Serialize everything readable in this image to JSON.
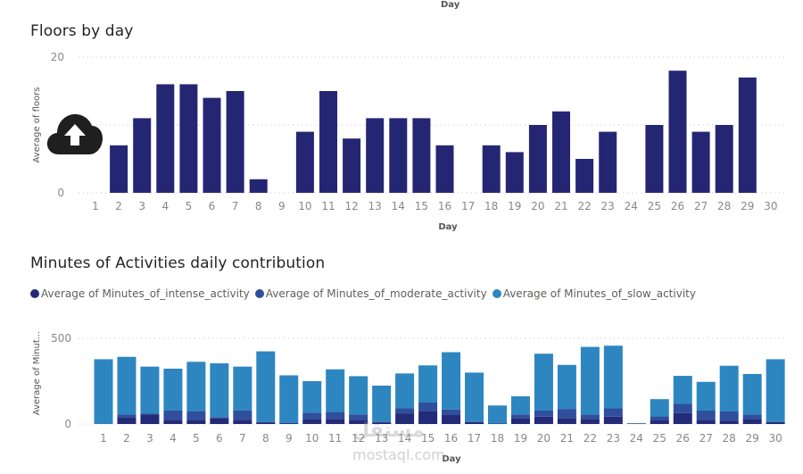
{
  "header": {
    "top_axis_label": "Day"
  },
  "watermark": {
    "arabic": "مستقل",
    "latin": "mostaql.com"
  },
  "colors": {
    "floors": "#252673",
    "intense": "#232A78",
    "moderate": "#2F4E9C",
    "slow": "#2E86C1",
    "grid": "#C8C6C4",
    "tick": "#8A8886"
  },
  "icons": {
    "upload": "cloud-upload-icon"
  },
  "chart_data": [
    {
      "type": "bar",
      "title": "Floors by day",
      "xlabel": "Day",
      "ylabel": "Average of floors",
      "ylim": [
        0,
        20
      ],
      "yticks": [
        0,
        20
      ],
      "grid": true,
      "categories": [
        "1",
        "2",
        "3",
        "4",
        "5",
        "6",
        "7",
        "8",
        "9",
        "10",
        "11",
        "12",
        "13",
        "14",
        "15",
        "16",
        "17",
        "18",
        "19",
        "20",
        "21",
        "22",
        "23",
        "24",
        "25",
        "26",
        "27",
        "28",
        "29",
        "30"
      ],
      "values": [
        0,
        7,
        11,
        16,
        16,
        14,
        15,
        2,
        0,
        9,
        15,
        8,
        11,
        11,
        11,
        7,
        0,
        7,
        6,
        10,
        12,
        5,
        9,
        0,
        10,
        18,
        9,
        10,
        17,
        0
      ]
    },
    {
      "type": "bar",
      "stacked": true,
      "title": "Minutes of Activities daily contribution",
      "xlabel": "Day",
      "ylabel": "Average of Minut...",
      "ylim": [
        0,
        500
      ],
      "yticks": [
        0,
        500
      ],
      "grid": true,
      "legend": "top-left",
      "categories": [
        "1",
        "2",
        "3",
        "4",
        "5",
        "6",
        "7",
        "8",
        "9",
        "10",
        "11",
        "12",
        "13",
        "14",
        "15",
        "16",
        "17",
        "18",
        "19",
        "20",
        "21",
        "22",
        "23",
        "24",
        "25",
        "26",
        "27",
        "28",
        "29",
        "30"
      ],
      "series": [
        {
          "name": "Average of Minutes_of_intense_activity",
          "values": [
            0,
            40,
            55,
            25,
            25,
            35,
            25,
            10,
            5,
            30,
            30,
            25,
            10,
            60,
            73,
            52,
            12,
            3,
            35,
            43,
            35,
            30,
            43,
            2,
            25,
            64,
            25,
            20,
            30,
            12
          ]
        },
        {
          "name": "Average of Minutes_of_moderate_activity",
          "values": [
            0,
            15,
            5,
            55,
            50,
            5,
            55,
            2,
            0,
            36,
            40,
            31,
            2,
            31,
            52,
            33,
            0,
            0,
            21,
            35,
            53,
            26,
            48,
            0,
            19,
            53,
            53,
            53,
            26,
            0
          ]
        },
        {
          "name": "Average of Minutes_of_slow_activity",
          "values": [
            378,
            337,
            275,
            243,
            288,
            314,
            255,
            412,
            279,
            184,
            249,
            223,
            212,
            204,
            217,
            334,
            288,
            105,
            106,
            332,
            257,
            394,
            366,
            3,
            101,
            164,
            168,
            267,
            236,
            366
          ]
        }
      ]
    }
  ]
}
